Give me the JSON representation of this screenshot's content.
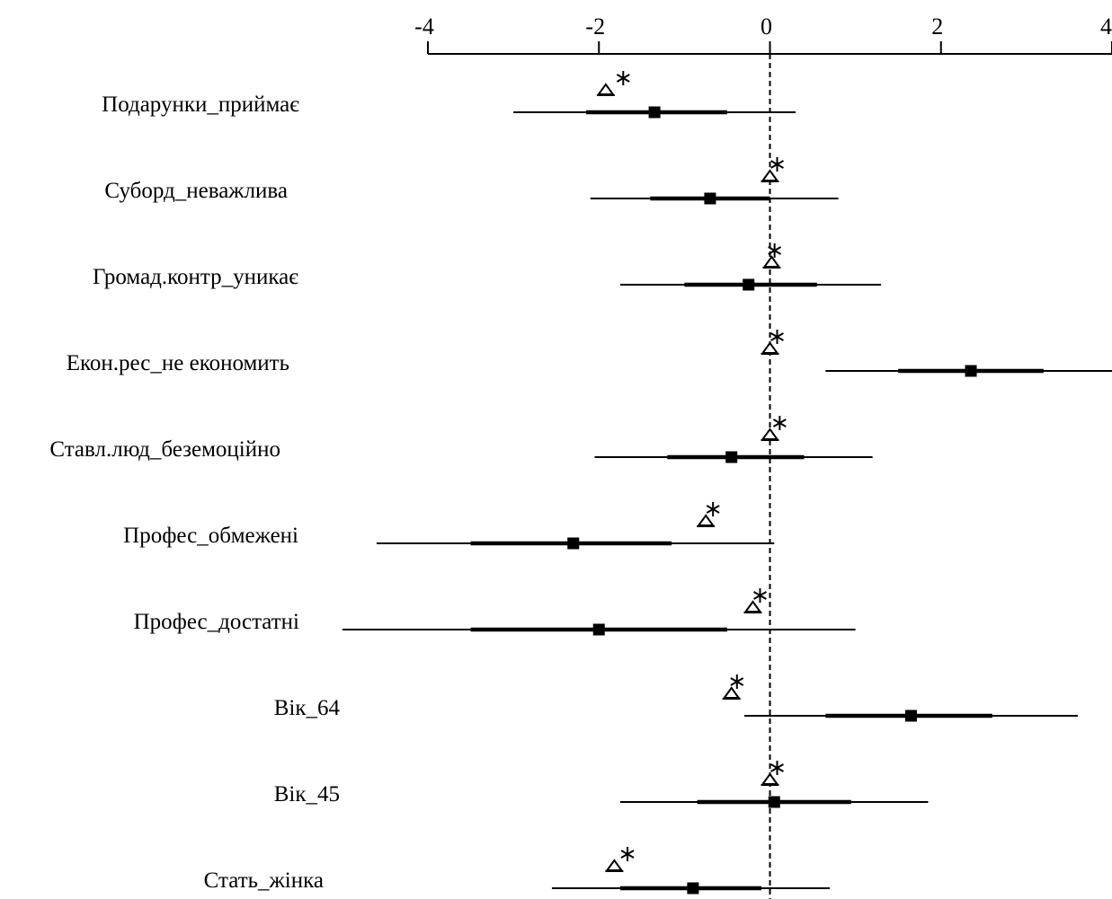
{
  "chart_data": {
    "type": "forest",
    "title": "",
    "xlabel": "",
    "ylabel": "",
    "xlim": [
      -4,
      4
    ],
    "xticks": [
      "-4",
      "-2",
      "0",
      "2",
      "4"
    ],
    "xtick_values": [
      -4,
      -2,
      0,
      2,
      4
    ],
    "reference_line": 0,
    "rows": [
      {
        "label": "Подарунки_приймає",
        "estimate": -1.35,
        "inner": [
          -2.15,
          -0.5
        ],
        "outer": [
          -3.0,
          0.3
        ],
        "triangle": -1.92,
        "star": -1.8
      },
      {
        "label": "Суборд_неважлива",
        "estimate": -0.7,
        "inner": [
          -1.4,
          0.0
        ],
        "outer": [
          -2.1,
          0.8
        ],
        "triangle": 0.0,
        "star": 0.0
      },
      {
        "label": "Громад.контр_уникає",
        "estimate": -0.25,
        "inner": [
          -1.0,
          0.55
        ],
        "outer": [
          -1.75,
          1.3
        ],
        "triangle": 0.02,
        "star": -0.03
      },
      {
        "label": "Екон.рес_не економить",
        "estimate": 2.35,
        "inner": [
          1.5,
          3.2
        ],
        "outer": [
          0.65,
          4.0
        ],
        "triangle": 0.0,
        "star": 0.0
      },
      {
        "label": "Ставл.люд_беземоційно",
        "estimate": -0.45,
        "inner": [
          -1.2,
          0.4
        ],
        "outer": [
          -2.05,
          1.2
        ],
        "triangle": 0.0,
        "star": 0.03
      },
      {
        "label": "Профес_обмежені",
        "estimate": -2.3,
        "inner": [
          -3.5,
          -1.15
        ],
        "outer": [
          -4.6,
          0.05
        ],
        "triangle": -0.75,
        "star": -0.75
      },
      {
        "label": "Профес_достатні",
        "estimate": -2.0,
        "inner": [
          -3.5,
          -0.5
        ],
        "outer": [
          -5.0,
          1.0
        ],
        "triangle": -0.2,
        "star": -0.2
      },
      {
        "label": "Вік_64",
        "estimate": 1.65,
        "inner": [
          0.65,
          2.6
        ],
        "outer": [
          -0.3,
          3.6
        ],
        "triangle": -0.45,
        "star": -0.47
      },
      {
        "label": "Вік_45",
        "estimate": 0.05,
        "inner": [
          -0.85,
          0.95
        ],
        "outer": [
          -1.75,
          1.85
        ],
        "triangle": 0.0,
        "star": 0.0
      },
      {
        "label": "Стать_жінка",
        "estimate": -0.9,
        "inner": [
          -1.75,
          -0.1
        ],
        "outer": [
          -2.55,
          0.7
        ],
        "triangle": -1.82,
        "star": -1.75
      }
    ]
  }
}
